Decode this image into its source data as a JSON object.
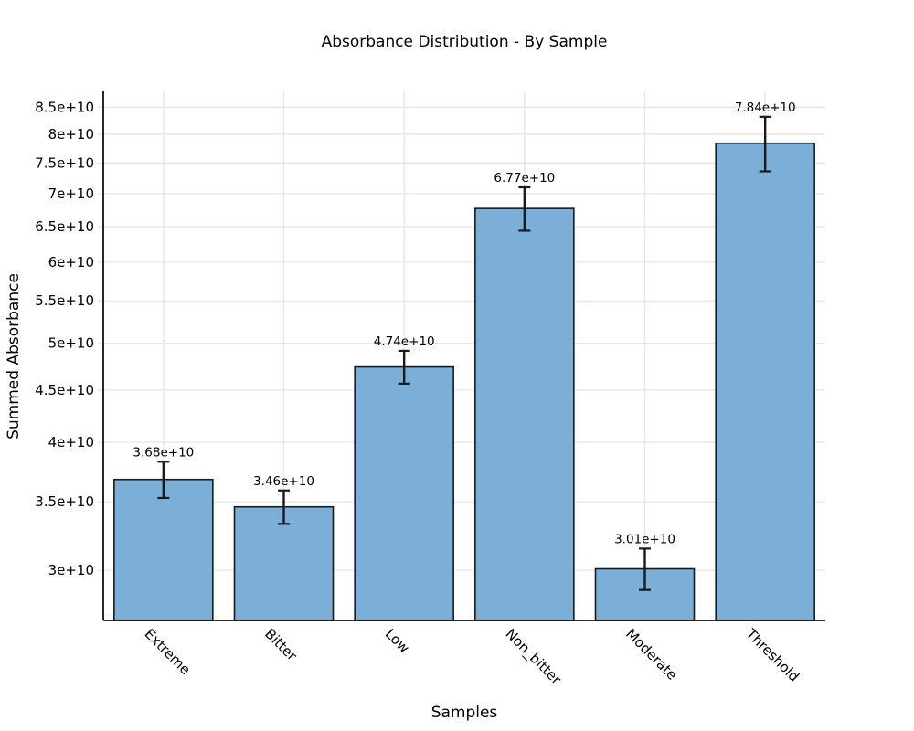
{
  "chart_data": {
    "type": "bar",
    "title": "Absorbance Distribution - By Sample",
    "xlabel": "Samples",
    "ylabel": "Summed Absorbance",
    "yscale": "log",
    "grid": true,
    "legend": "none",
    "categories": [
      "Extreme",
      "Bitter",
      "Low",
      "Non_bitter",
      "Moderate",
      "Threshold"
    ],
    "values": [
      36800000000.0,
      34600000000.0,
      47400000000.0,
      67700000000.0,
      30100000000.0,
      78400000000.0
    ],
    "errors": [
      1500000000.0,
      1300000000.0,
      1750000000.0,
      3300000000.0,
      1400000000.0,
      4800000000.0
    ],
    "bar_labels": [
      "3.68e+10",
      "3.46e+10",
      "4.74e+10",
      "6.77e+10",
      "3.01e+10",
      "7.84e+10"
    ],
    "yticks": [
      {
        "value": 30000000000.0,
        "label": "3e+10"
      },
      {
        "value": 35000000000.0,
        "label": "3.5e+10"
      },
      {
        "value": 40000000000.0,
        "label": "4e+10"
      },
      {
        "value": 45000000000.0,
        "label": "4.5e+10"
      },
      {
        "value": 50000000000.0,
        "label": "5e+10"
      },
      {
        "value": 55000000000.0,
        "label": "5.5e+10"
      },
      {
        "value": 60000000000.0,
        "label": "6e+10"
      },
      {
        "value": 65000000000.0,
        "label": "6.5e+10"
      },
      {
        "value": 70000000000.0,
        "label": "7e+10"
      },
      {
        "value": 75000000000.0,
        "label": "7.5e+10"
      },
      {
        "value": 80000000000.0,
        "label": "8e+10"
      },
      {
        "value": 85000000000.0,
        "label": "8.5e+10"
      }
    ],
    "ylim": [
      26800000000.0,
      88100000000.0
    ],
    "bar_color": "#7BAFD7",
    "bar_edge_color": "#1a1a1a",
    "error_bar_color": "#1a1a1a",
    "grid_color": "#e6e6e6",
    "axis_line_color": "#111111",
    "text_color": "#000000",
    "background": "#ffffff"
  }
}
